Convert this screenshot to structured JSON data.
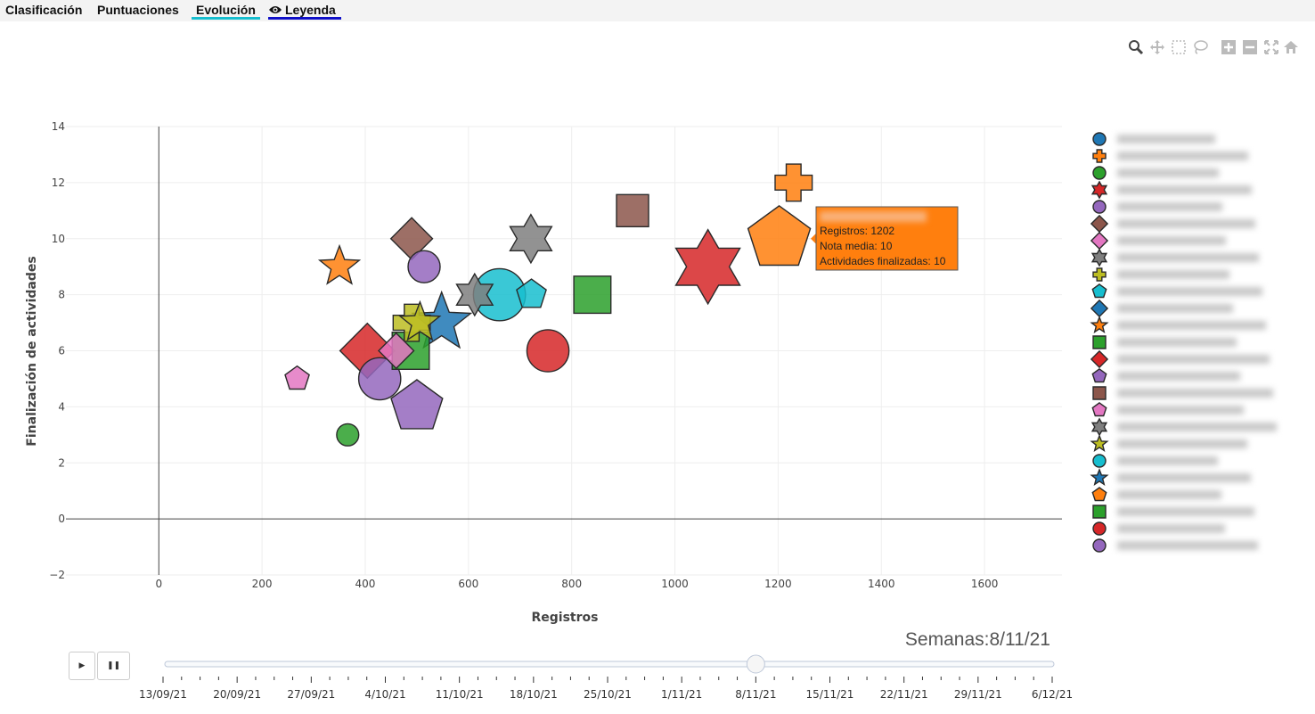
{
  "tabs": [
    {
      "label": "Clasificación",
      "active": false
    },
    {
      "label": "Puntuaciones",
      "active": false
    },
    {
      "label": "Evolución",
      "active": true
    },
    {
      "label": "Leyenda",
      "active": false
    }
  ],
  "modebar": [
    "zoom-icon",
    "pan-icon",
    "box-select-icon",
    "lasso-icon",
    "zoom-in-icon",
    "zoom-out-icon",
    "autoscale-icon",
    "reset-axes-icon"
  ],
  "slider": {
    "prefix": "Semanas:",
    "current": "8/11/21",
    "play_label": "▶",
    "pause_label": "❚❚",
    "steps": [
      "13/09/21",
      "20/09/21",
      "27/09/21",
      "4/10/21",
      "11/10/21",
      "18/10/21",
      "25/10/21",
      "1/11/21",
      "8/11/21",
      "15/11/21",
      "22/11/21",
      "29/11/21",
      "6/12/21"
    ],
    "current_index": 8
  },
  "tooltip": {
    "lines": [
      "Registros: 1202",
      "Nota media: 10",
      "Actividades finalizadas: 10"
    ],
    "color": "#ff7f0e"
  },
  "chart_data": {
    "type": "scatter",
    "xlabel": "Registros",
    "ylabel": "Finalización de actividades",
    "xlim": [
      -180,
      1750
    ],
    "ylim": [
      -2,
      14
    ],
    "xticks": [
      0,
      200,
      400,
      600,
      800,
      1000,
      1200,
      1400,
      1600
    ],
    "yticks": [
      -2,
      0,
      2,
      4,
      6,
      8,
      10,
      12,
      14
    ],
    "grid": true,
    "legend_position": "right",
    "legend_names_blurred": true,
    "points": [
      {
        "x": 1202,
        "y": 10,
        "size": 10,
        "symbol": "pentagon",
        "color": "#ff7f0e"
      },
      {
        "x": 1230,
        "y": 12,
        "size": 6,
        "symbol": "cross",
        "color": "#ff7f0e"
      },
      {
        "x": 918,
        "y": 11,
        "size": 5,
        "symbol": "square",
        "color": "#8c564b"
      },
      {
        "x": 1064,
        "y": 9,
        "size": 10,
        "symbol": "hexagram",
        "color": "#d62728"
      },
      {
        "x": 721,
        "y": 10,
        "size": 6,
        "symbol": "hexagram",
        "color": "#7f7f7f"
      },
      {
        "x": 350,
        "y": 9,
        "size": 5,
        "symbol": "star",
        "color": "#ff7f0e"
      },
      {
        "x": 490,
        "y": 10,
        "size": 5,
        "symbol": "diamond",
        "color": "#8c564b"
      },
      {
        "x": 514,
        "y": 9,
        "size": 5,
        "symbol": "circle",
        "color": "#9467bd"
      },
      {
        "x": 612,
        "y": 8,
        "size": 5,
        "symbol": "hexagram",
        "color": "#7f7f7f"
      },
      {
        "x": 660,
        "y": 8,
        "size": 9,
        "symbol": "circle",
        "color": "#17becf"
      },
      {
        "x": 722,
        "y": 8,
        "size": 4,
        "symbol": "pentagon",
        "color": "#17becf"
      },
      {
        "x": 840,
        "y": 8,
        "size": 6,
        "symbol": "square",
        "color": "#2ca02c"
      },
      {
        "x": 754,
        "y": 6,
        "size": 7,
        "symbol": "circle",
        "color": "#d62728"
      },
      {
        "x": 404,
        "y": 6,
        "size": 7,
        "symbol": "diamond",
        "color": "#d62728"
      },
      {
        "x": 460,
        "y": 6,
        "size": 4,
        "symbol": "diamond",
        "color": "#e377c2"
      },
      {
        "x": 488,
        "y": 6,
        "size": 6,
        "symbol": "square",
        "color": "#2ca02c"
      },
      {
        "x": 490,
        "y": 7,
        "size": 6,
        "symbol": "cross",
        "color": "#bcbd22"
      },
      {
        "x": 506,
        "y": 7,
        "size": 5,
        "symbol": "star",
        "color": "#bcbd22"
      },
      {
        "x": 548,
        "y": 7,
        "size": 8,
        "symbol": "star",
        "color": "#1f77b4"
      },
      {
        "x": 268,
        "y": 5,
        "size": 3,
        "symbol": "pentagon",
        "color": "#e377c2"
      },
      {
        "x": 428,
        "y": 5,
        "size": 7,
        "symbol": "circle",
        "color": "#9467bd"
      },
      {
        "x": 500,
        "y": 4,
        "size": 8,
        "symbol": "pentagon",
        "color": "#9467bd"
      },
      {
        "x": 366,
        "y": 3,
        "size": 3,
        "symbol": "circle",
        "color": "#2ca02c"
      }
    ],
    "legend": [
      {
        "symbol": "circle",
        "color": "#1f77b4"
      },
      {
        "symbol": "cross",
        "color": "#ff7f0e"
      },
      {
        "symbol": "circle",
        "color": "#2ca02c"
      },
      {
        "symbol": "hexagram",
        "color": "#d62728"
      },
      {
        "symbol": "circle",
        "color": "#9467bd"
      },
      {
        "symbol": "diamond",
        "color": "#8c564b"
      },
      {
        "symbol": "diamond",
        "color": "#e377c2"
      },
      {
        "symbol": "hexagram",
        "color": "#7f7f7f"
      },
      {
        "symbol": "cross",
        "color": "#bcbd22"
      },
      {
        "symbol": "pentagon",
        "color": "#17becf"
      },
      {
        "symbol": "diamond",
        "color": "#1f77b4"
      },
      {
        "symbol": "star",
        "color": "#ff7f0e"
      },
      {
        "symbol": "square",
        "color": "#2ca02c"
      },
      {
        "symbol": "diamond",
        "color": "#d62728"
      },
      {
        "symbol": "pentagon",
        "color": "#9467bd"
      },
      {
        "symbol": "square",
        "color": "#8c564b"
      },
      {
        "symbol": "pentagon",
        "color": "#e377c2"
      },
      {
        "symbol": "hexagram",
        "color": "#7f7f7f"
      },
      {
        "symbol": "star",
        "color": "#bcbd22"
      },
      {
        "symbol": "circle",
        "color": "#17becf"
      },
      {
        "symbol": "star",
        "color": "#1f77b4"
      },
      {
        "symbol": "pentagon",
        "color": "#ff7f0e"
      },
      {
        "symbol": "square",
        "color": "#2ca02c"
      },
      {
        "symbol": "circle",
        "color": "#d62728"
      },
      {
        "symbol": "circle",
        "color": "#9467bd"
      }
    ]
  }
}
